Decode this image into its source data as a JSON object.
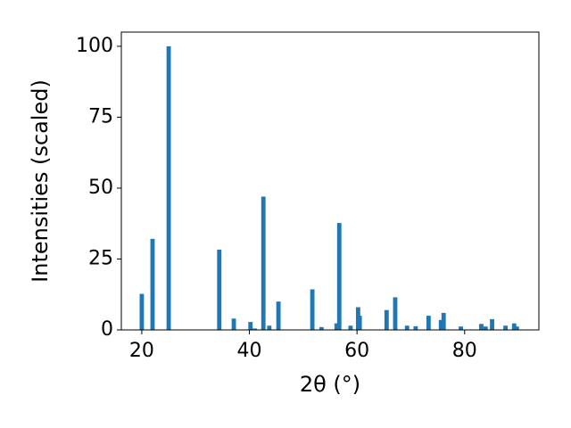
{
  "chart_data": {
    "type": "bar",
    "x_label": "2θ (°)",
    "y_label": "Intensities (scaled)",
    "x": [
      20.0,
      22.0,
      25.0,
      34.4,
      37.1,
      40.2,
      41.0,
      42.6,
      43.7,
      45.4,
      51.7,
      53.4,
      56.2,
      56.7,
      58.8,
      60.2,
      60.5,
      65.5,
      67.1,
      69.3,
      70.9,
      73.3,
      75.6,
      76.1,
      79.3,
      83.1,
      83.9,
      85.1,
      87.6,
      89.2,
      89.7
    ],
    "values": [
      12.7,
      32.1,
      100,
      28.3,
      4.0,
      2.8,
      0.5,
      47.0,
      1.5,
      10.0,
      14.3,
      1.0,
      2.3,
      37.7,
      1.5,
      8.0,
      5.0,
      7.0,
      11.5,
      1.5,
      1.3,
      5.0,
      3.5,
      6.0,
      1.2,
      2.1,
      1.2,
      3.8,
      1.5,
      2.3,
      1.2
    ],
    "color": "#1f77b4",
    "xlim": [
      16.2,
      93.8
    ],
    "ylim": [
      0,
      105
    ],
    "xticks": [
      20,
      40,
      60,
      80
    ],
    "yticks": [
      0,
      25,
      50,
      75,
      100
    ]
  }
}
